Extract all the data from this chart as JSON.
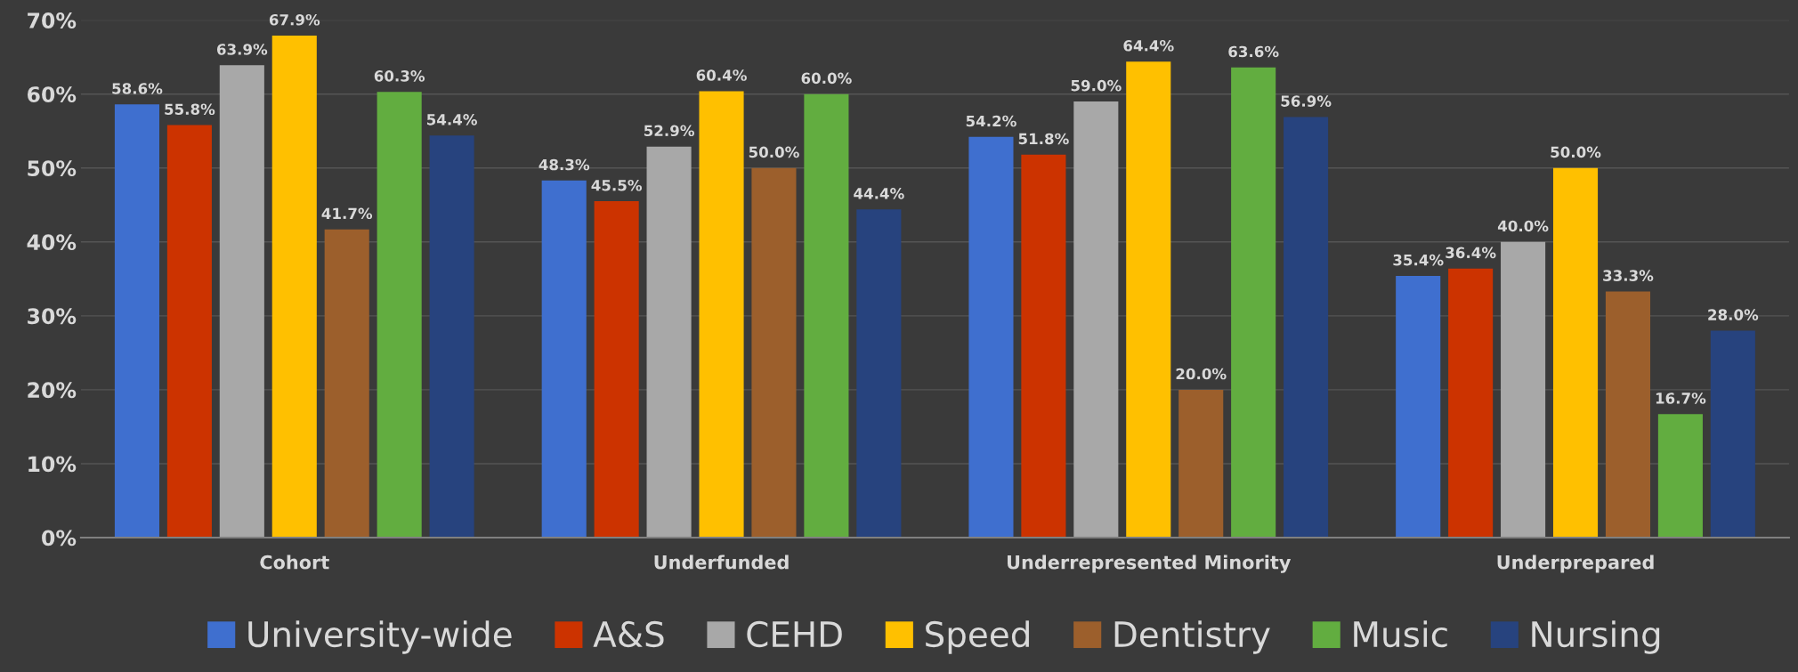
{
  "chart_data": {
    "type": "bar",
    "categories": [
      "Cohort",
      "Underfunded",
      "Underrepresented Minority",
      "Underprepared"
    ],
    "series": [
      {
        "name": "University-wide",
        "color": "#3f6fcf",
        "values": [
          58.6,
          48.3,
          54.2,
          35.4
        ],
        "value_labels": [
          "58.6%",
          "48.3%",
          "54.2%",
          "35.4%"
        ]
      },
      {
        "name": "A&S",
        "color": "#cc3300",
        "values": [
          55.8,
          45.5,
          51.8,
          36.4
        ],
        "value_labels": [
          "55.8%",
          "45.5%",
          "51.8%",
          "36.4%"
        ]
      },
      {
        "name": "CEHD",
        "color": "#a8a8a8",
        "values": [
          63.9,
          52.9,
          59.0,
          40.0
        ],
        "value_labels": [
          "63.9%",
          "52.9%",
          "59.0%",
          "40.0%"
        ]
      },
      {
        "name": "Speed",
        "color": "#ffc000",
        "values": [
          67.9,
          60.4,
          64.4,
          50.0
        ],
        "value_labels": [
          "67.9%",
          "60.4%",
          "64.4%",
          "50.0%"
        ]
      },
      {
        "name": "Dentistry",
        "color": "#9c5f2c",
        "values": [
          41.7,
          50.0,
          20.0,
          33.3
        ],
        "value_labels": [
          "41.7%",
          "50.0%",
          "20.0%",
          "33.3%"
        ]
      },
      {
        "name": "Music",
        "color": "#62ad40",
        "values": [
          60.3,
          60.0,
          63.6,
          16.7
        ],
        "value_labels": [
          "60.3%",
          "60.0%",
          "63.6%",
          "16.7%"
        ]
      },
      {
        "name": "Nursing",
        "color": "#27437e",
        "values": [
          54.4,
          44.4,
          56.9,
          28.0
        ],
        "value_labels": [
          "54.4%",
          "44.4%",
          "56.9%",
          "28.0%"
        ]
      }
    ],
    "ylim": [
      0,
      70
    ],
    "yticks": [
      {
        "value": 0,
        "label": "0%"
      },
      {
        "value": 10,
        "label": "10%"
      },
      {
        "value": 20,
        "label": "20%"
      },
      {
        "value": 30,
        "label": "30%"
      },
      {
        "value": 40,
        "label": "40%"
      },
      {
        "value": 50,
        "label": "50%"
      },
      {
        "value": 60,
        "label": "60%"
      },
      {
        "value": 70,
        "label": "70%"
      }
    ],
    "grid": "y",
    "legend": "bottom"
  }
}
